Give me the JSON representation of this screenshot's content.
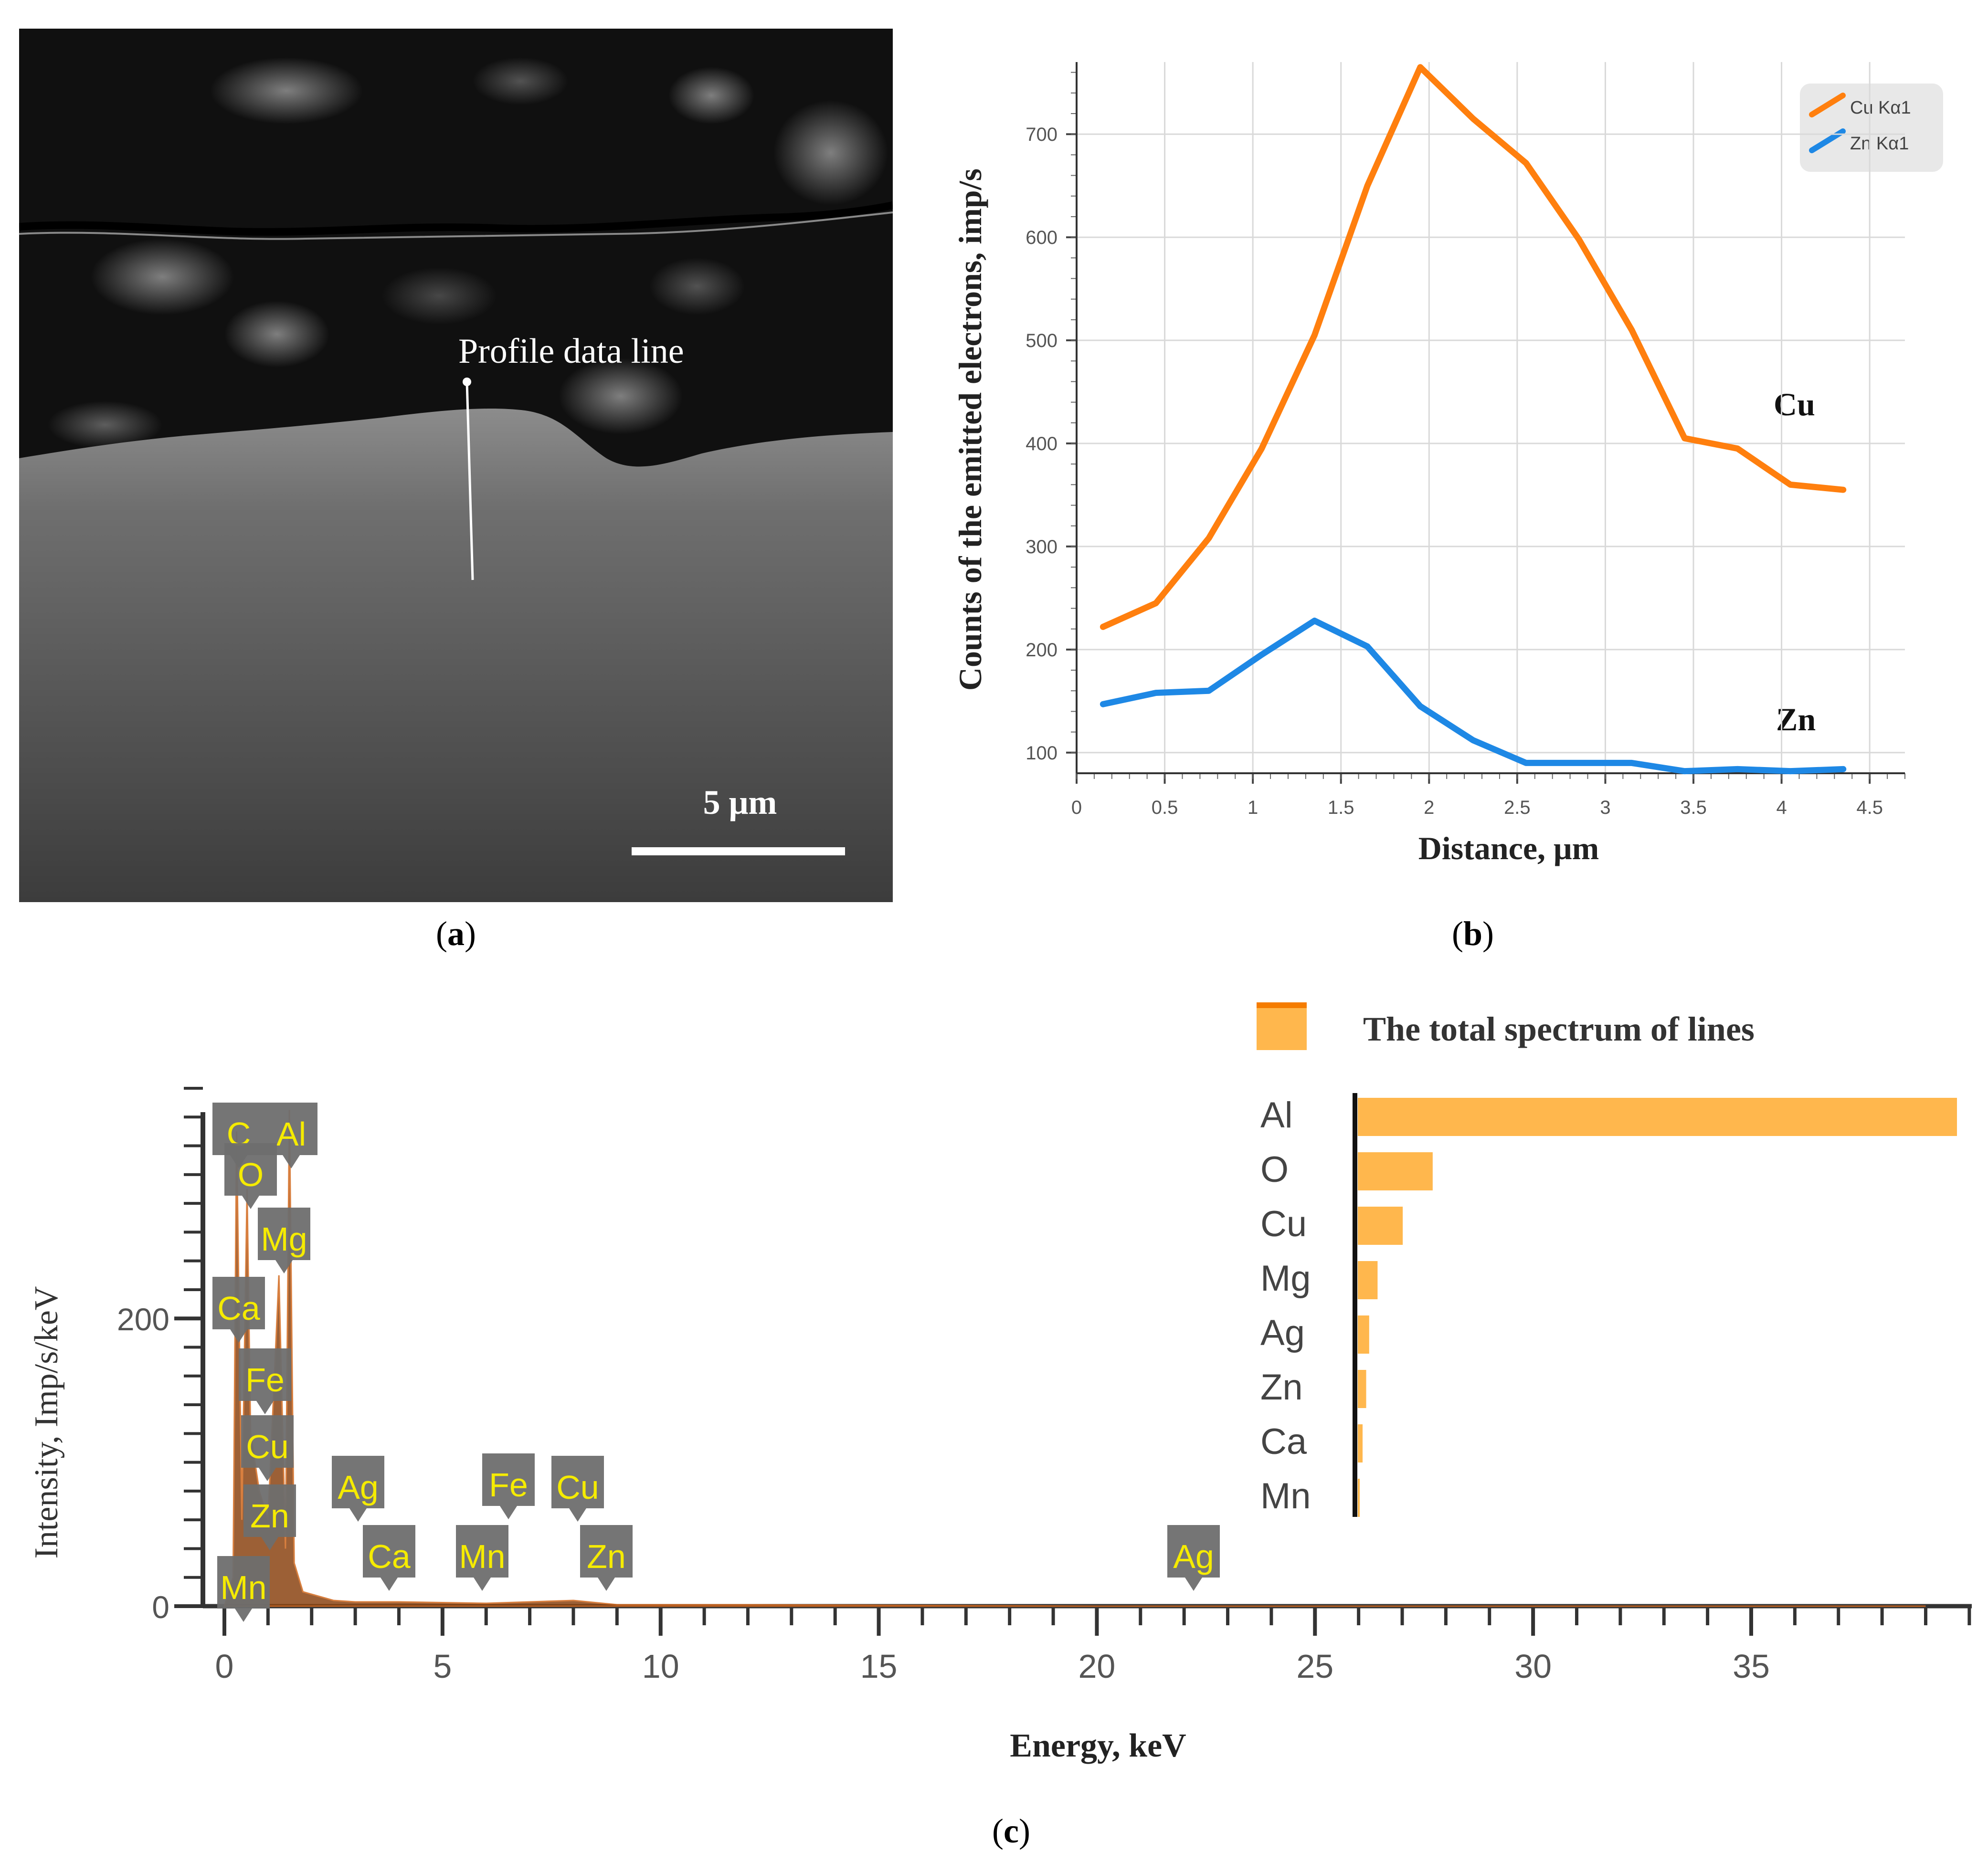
{
  "figure": {
    "panel_a": {
      "caption_letter": "a",
      "profile_label": "Profile data line",
      "scale_bar_label": "5 μm"
    },
    "panel_b": {
      "caption_letter": "b",
      "annotation_cu": "Cu",
      "annotation_zn": "Zn"
    },
    "panel_c": {
      "caption_letter": "c",
      "legend_title": "The total spectrum of lines",
      "peak_labels": [
        "C",
        "Al",
        "O",
        "Mg",
        "Ca",
        "Fe",
        "Cu",
        "Zn",
        "Mn",
        "Ag",
        "Ca",
        "Mn",
        "Fe",
        "Cu",
        "Zn",
        "Ag"
      ]
    }
  },
  "colors": {
    "cu_line": "#FF7F0E",
    "zn_line": "#1E88E5",
    "bar": "#FFB74D",
    "label_bg": "#6E6E6E",
    "label_text": "#F5EB00",
    "sem_dark": "#101010"
  },
  "chart_data": [
    {
      "type": "line",
      "title": "",
      "xlabel": "Distance, μm",
      "ylabel": "Counts of the emitted electrons, imp/s",
      "xlim": [
        0,
        4.7
      ],
      "ylim": [
        80,
        770
      ],
      "x_ticks": [
        "0",
        "0.5",
        "1",
        "1.5",
        "2",
        "2.5",
        "3",
        "3.5",
        "4",
        "4.5"
      ],
      "y_ticks": [
        "100",
        "200",
        "300",
        "400",
        "500",
        "600",
        "700"
      ],
      "grid": true,
      "legend_position": "top-right",
      "series": [
        {
          "name": "Cu Kα1",
          "x": [
            0.15,
            0.45,
            0.75,
            1.05,
            1.35,
            1.65,
            1.95,
            2.25,
            2.55,
            2.85,
            3.15,
            3.45,
            3.75,
            4.05,
            4.35
          ],
          "values": [
            222,
            245,
            308,
            395,
            505,
            650,
            765,
            715,
            672,
            598,
            510,
            405,
            395,
            360,
            355
          ]
        },
        {
          "name": "Zn Kα1",
          "x": [
            0.15,
            0.45,
            0.75,
            1.05,
            1.35,
            1.65,
            1.95,
            2.25,
            2.55,
            2.85,
            3.15,
            3.45,
            3.75,
            4.05,
            4.35
          ],
          "values": [
            147,
            158,
            160,
            195,
            228,
            203,
            145,
            112,
            90,
            90,
            90,
            82,
            84,
            82,
            84
          ]
        }
      ]
    },
    {
      "type": "line",
      "title": "",
      "xlabel": "Energy, keV",
      "ylabel": "Intensity, Imp/s/keV",
      "xlim": [
        -0.5,
        40
      ],
      "ylim": [
        0,
        360
      ],
      "x_ticks": [
        "0",
        "5",
        "10",
        "15",
        "20",
        "25",
        "30",
        "35"
      ],
      "y_ticks": [
        "0",
        "200"
      ],
      "series": [
        {
          "name": "Spectrum",
          "x": [
            0,
            0.2,
            0.28,
            0.4,
            0.52,
            0.6,
            0.8,
            1.0,
            1.25,
            1.4,
            1.49,
            1.6,
            1.8,
            2.5,
            3.0,
            4.0,
            6.0,
            8.0,
            9.0,
            12,
            20,
            25,
            39
          ],
          "values": [
            0,
            20,
            330,
            60,
            290,
            120,
            80,
            60,
            230,
            40,
            345,
            30,
            10,
            4,
            3,
            3,
            2,
            4,
            1,
            1,
            0,
            0,
            0
          ]
        }
      ]
    },
    {
      "type": "bar",
      "title": "The total spectrum of lines",
      "categories": [
        "Al",
        "O",
        "Cu",
        "Mg",
        "Ag",
        "Zn",
        "Ca",
        "Mn"
      ],
      "values": [
        100,
        12.5,
        7.5,
        3.3,
        1.9,
        1.4,
        0.8,
        0.2
      ]
    }
  ]
}
